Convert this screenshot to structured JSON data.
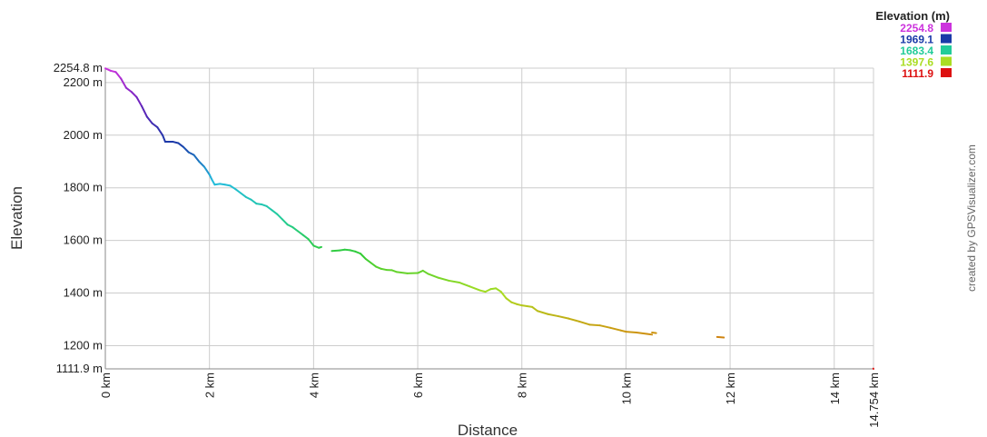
{
  "chart_data": {
    "type": "line",
    "xlabel": "Distance",
    "ylabel": "Elevation",
    "xlim": [
      0,
      14.754
    ],
    "ylim": [
      1111.9,
      2254.8
    ],
    "y_ticks": [
      {
        "value": 2254.8,
        "label": "2254.8 m"
      },
      {
        "value": 2200,
        "label": "2200 m"
      },
      {
        "value": 2000,
        "label": "2000 m"
      },
      {
        "value": 1800,
        "label": "1800 m"
      },
      {
        "value": 1600,
        "label": "1600 m"
      },
      {
        "value": 1400,
        "label": "1400 m"
      },
      {
        "value": 1200,
        "label": "1200 m"
      },
      {
        "value": 1111.9,
        "label": "1111.9 m"
      }
    ],
    "x_ticks": [
      {
        "value": 0,
        "label": "0 km"
      },
      {
        "value": 2,
        "label": "2 km"
      },
      {
        "value": 4,
        "label": "4 km"
      },
      {
        "value": 6,
        "label": "6 km"
      },
      {
        "value": 8,
        "label": "8 km"
      },
      {
        "value": 10,
        "label": "10 km"
      },
      {
        "value": 12,
        "label": "12 km"
      },
      {
        "value": 14,
        "label": "14 km"
      },
      {
        "value": 14.754,
        "label": "14.754 km"
      }
    ],
    "grid": true,
    "legend": {
      "title": "Elevation (m)",
      "placement": "top-right",
      "entries": [
        {
          "label": "2254.8",
          "color": "#cc33dd"
        },
        {
          "label": "1969.1",
          "color": "#1a3aa8"
        },
        {
          "label": "1683.4",
          "color": "#22cc99"
        },
        {
          "label": "1397.6",
          "color": "#aadd22"
        },
        {
          "label": "1111.9",
          "color": "#dd1111"
        }
      ]
    },
    "color_stops": [
      {
        "value": 2254.8,
        "color": "#cc33dd"
      },
      {
        "value": 2112,
        "color": "#6622bb"
      },
      {
        "value": 1969.1,
        "color": "#1a3aa8"
      },
      {
        "value": 1826,
        "color": "#22bbdd"
      },
      {
        "value": 1683.4,
        "color": "#22cc99"
      },
      {
        "value": 1540,
        "color": "#33cc33"
      },
      {
        "value": 1397.6,
        "color": "#aadd22"
      },
      {
        "value": 1254,
        "color": "#cc9911"
      },
      {
        "value": 1111.9,
        "color": "#dd1111"
      }
    ],
    "segments": [
      {
        "points": [
          [
            0,
            2254
          ],
          [
            0.1,
            2245
          ],
          [
            0.2,
            2240
          ],
          [
            0.3,
            2215
          ],
          [
            0.4,
            2180
          ],
          [
            0.5,
            2165
          ],
          [
            0.6,
            2145
          ],
          [
            0.7,
            2110
          ],
          [
            0.8,
            2070
          ],
          [
            0.9,
            2045
          ],
          [
            1.0,
            2030
          ],
          [
            1.1,
            2000
          ],
          [
            1.15,
            1975
          ],
          [
            1.3,
            1975
          ],
          [
            1.4,
            1970
          ],
          [
            1.5,
            1955
          ],
          [
            1.6,
            1935
          ],
          [
            1.7,
            1925
          ],
          [
            1.8,
            1900
          ],
          [
            1.9,
            1880
          ],
          [
            2.0,
            1850
          ],
          [
            2.05,
            1830
          ],
          [
            2.1,
            1812
          ],
          [
            2.2,
            1815
          ],
          [
            2.3,
            1812
          ],
          [
            2.4,
            1808
          ],
          [
            2.5,
            1795
          ],
          [
            2.6,
            1780
          ],
          [
            2.7,
            1765
          ],
          [
            2.8,
            1755
          ],
          [
            2.9,
            1740
          ],
          [
            3.0,
            1737
          ],
          [
            3.1,
            1730
          ],
          [
            3.2,
            1715
          ],
          [
            3.3,
            1700
          ],
          [
            3.4,
            1680
          ],
          [
            3.5,
            1660
          ],
          [
            3.6,
            1650
          ],
          [
            3.7,
            1635
          ],
          [
            3.8,
            1620
          ],
          [
            3.9,
            1605
          ],
          [
            4.0,
            1580
          ],
          [
            4.1,
            1572
          ],
          [
            4.15,
            1575
          ]
        ]
      },
      {
        "points": [
          [
            4.35,
            1560
          ],
          [
            4.5,
            1562
          ],
          [
            4.6,
            1565
          ],
          [
            4.7,
            1563
          ],
          [
            4.8,
            1558
          ],
          [
            4.9,
            1550
          ],
          [
            5.0,
            1530
          ],
          [
            5.1,
            1515
          ],
          [
            5.2,
            1500
          ],
          [
            5.3,
            1492
          ],
          [
            5.4,
            1488
          ],
          [
            5.5,
            1487
          ],
          [
            5.6,
            1480
          ],
          [
            5.8,
            1475
          ],
          [
            6.0,
            1476
          ],
          [
            6.1,
            1485
          ],
          [
            6.2,
            1473
          ],
          [
            6.4,
            1458
          ],
          [
            6.6,
            1447
          ],
          [
            6.8,
            1440
          ],
          [
            7.0,
            1425
          ],
          [
            7.2,
            1410
          ],
          [
            7.3,
            1405
          ],
          [
            7.4,
            1415
          ],
          [
            7.5,
            1418
          ],
          [
            7.6,
            1405
          ],
          [
            7.7,
            1380
          ],
          [
            7.8,
            1365
          ],
          [
            7.9,
            1358
          ],
          [
            8.0,
            1353
          ],
          [
            8.1,
            1350
          ],
          [
            8.2,
            1347
          ],
          [
            8.3,
            1332
          ],
          [
            8.5,
            1320
          ],
          [
            8.7,
            1312
          ],
          [
            8.9,
            1303
          ],
          [
            9.1,
            1292
          ],
          [
            9.3,
            1280
          ],
          [
            9.5,
            1277
          ],
          [
            9.7,
            1268
          ],
          [
            9.9,
            1258
          ],
          [
            10.0,
            1253
          ],
          [
            10.2,
            1250
          ],
          [
            10.4,
            1245
          ],
          [
            10.5,
            1242
          ]
        ]
      },
      {
        "points": [
          [
            10.5,
            1250
          ],
          [
            10.58,
            1248
          ]
        ]
      },
      {
        "points": [
          [
            11.75,
            1233
          ],
          [
            11.88,
            1231
          ]
        ]
      },
      {
        "points": [
          [
            14.75,
            1113
          ],
          [
            14.754,
            1112
          ]
        ]
      }
    ]
  },
  "credit": "created by GPSVisualizer.com"
}
